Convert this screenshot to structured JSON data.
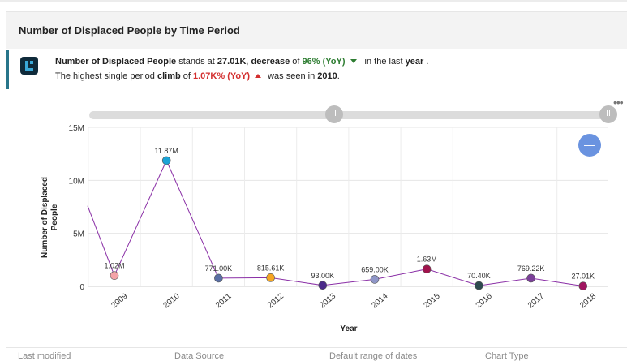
{
  "panel": {
    "title": "Number of Displaced People by Time Period"
  },
  "insight": {
    "line1": {
      "metric": "Number of Displaced People",
      "t1": " stands at ",
      "value": "27.01K",
      "t2": ", ",
      "direction": "decrease",
      "t3": " of ",
      "change": "96% (YoY)",
      "t4": "in the last ",
      "period": "year",
      "t5": " ."
    },
    "line2": {
      "t1": "The highest single period ",
      "label": "climb",
      "t2": " of ",
      "change": "1.07K% (YoY)",
      "t3": "was seen in ",
      "year": "2010",
      "t4": "."
    }
  },
  "slider": {
    "handle_left_glyph": "II",
    "handle_right_glyph": "II"
  },
  "zoom_button_glyph": "—",
  "menu_glyph": "•••",
  "chart_data": {
    "type": "line",
    "x": [
      "2009",
      "2010",
      "2011",
      "2012",
      "2013",
      "2014",
      "2015",
      "2016",
      "2017",
      "2018"
    ],
    "values": [
      1020000,
      11870000,
      771000,
      815610,
      93000,
      659000,
      1630000,
      70400,
      769220,
      27010
    ],
    "data_labels": [
      "1.02M",
      "11.87M",
      "771.00K",
      "815.61K",
      "93.00K",
      "659.00K",
      "1.63M",
      "70.40K",
      "769.22K",
      "27.01K"
    ],
    "point_colors": [
      "#f4a3a8",
      "#1aa3d6",
      "#5a6fa5",
      "#f5a623",
      "#4b2a8a",
      "#8f96c7",
      "#a0134b",
      "#2e4a4f",
      "#7b3f99",
      "#a01560"
    ],
    "line_color": "#8a2fa6",
    "xlabel": "Year",
    "ylabel": "Number of Displaced People",
    "yticks": [
      0,
      5000000,
      10000000,
      15000000
    ],
    "ytick_labels": [
      "0",
      "5M",
      "10M",
      "15M"
    ],
    "ylim": [
      0,
      15000000
    ],
    "grid": true
  },
  "footer": {
    "labels": [
      "Last modified",
      "Data Source",
      "Default range of dates",
      "Chart Type"
    ]
  }
}
